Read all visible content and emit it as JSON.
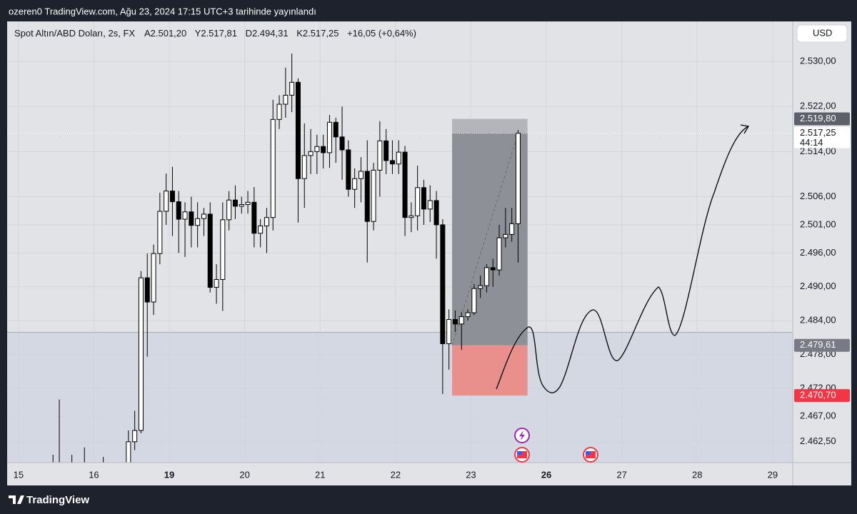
{
  "header": {
    "text": "ozeren0 TradingView.com, Ağu 23, 2024 17:15 UTC+3 tarihinde yayınlandı"
  },
  "footer": {
    "brand": "TradingView"
  },
  "currency": "USD",
  "chart_data": {
    "type": "candlestick",
    "title": "Spot Altın/ABD Doları, 2s, FX",
    "legend_values": [
      "A2.501,20",
      "Y2.517,81",
      "D2.494,31",
      "K2.517,25",
      "+16,05 (+0,64%)"
    ],
    "x": [
      5,
      6,
      7,
      8,
      9,
      10,
      11,
      12,
      13,
      14,
      15,
      16,
      17,
      18,
      19,
      20,
      21,
      22,
      23,
      24,
      25,
      26,
      27,
      28,
      29,
      30,
      31,
      32,
      33,
      34,
      35,
      36,
      37,
      38,
      39,
      40,
      41,
      42,
      43,
      44,
      45,
      46,
      47,
      48,
      49,
      50,
      51,
      52,
      53,
      54,
      55,
      56,
      57,
      58,
      59,
      60,
      61,
      62,
      63,
      64,
      65,
      66,
      67,
      68,
      69,
      70,
      71,
      72,
      73,
      74,
      75,
      76,
      77,
      78,
      79
    ],
    "open": [
      2455,
      2453,
      2456,
      2455,
      2454,
      2455,
      2454,
      2455,
      2456,
      2455,
      2456,
      2457,
      2458,
      2462.5,
      2464.5,
      2491.6,
      2487.3,
      2495.9,
      2503.4,
      2507,
      2505.1,
      2502,
      2503.3,
      2500.9,
      2502.1,
      2502.9,
      2489.9,
      2491.3,
      2501.9,
      2505.4,
      2504.3,
      2504.6,
      2505,
      2499.5,
      2500.8,
      2502.3,
      2519.7,
      2522.4,
      2524,
      2526.3,
      2509.2,
      2513.3,
      2514,
      2514.9,
      2513.8,
      2519.2,
      2516.6,
      2514.3,
      2507.3,
      2509.2,
      2510.5,
      2501.6,
      2510.7,
      2515.9,
      2512.4,
      2511.8,
      2513.9,
      2502.3,
      2502.6,
      2507.6,
      2503.8,
      2505.3,
      2501,
      2479.9,
      2484.2,
      2483.4,
      2484.7,
      2485.4,
      2489.7,
      2490.2,
      2493.4,
      2493,
      2498.7,
      2499.3,
      2501.2
    ],
    "high": [
      2460.2,
      2470,
      2458,
      2460.2,
      2457,
      2461.5,
      2457,
      2458,
      2459.8,
      2457.5,
      2458,
      2458.5,
      2464.5,
      2468,
      2492.8,
      2495.9,
      2497.5,
      2506.7,
      2510.1,
      2511.3,
      2507,
      2505,
      2506,
      2505,
      2504,
      2505,
      2494,
      2505,
      2507,
      2508,
      2506,
      2507,
      2507.7,
      2502,
      2504,
      2523.2,
      2524,
      2528.9,
      2531.4,
      2527,
      2519,
      2518,
      2517,
      2517,
      2520.5,
      2520,
      2522,
      2516,
      2511,
      2513,
      2516,
      2512,
      2519.4,
      2518,
      2516,
      2516,
      2515,
      2505,
      2511.5,
      2509,
      2508,
      2507,
      2502,
      2486,
      2485.8,
      2485.5,
      2486,
      2490.5,
      2492,
      2494,
      2495,
      2501,
      2504,
      2504,
      2517.81
    ],
    "low": [
      2448,
      2450,
      2452,
      2451,
      2450,
      2452,
      2451,
      2452,
      2453,
      2452,
      2453,
      2454,
      2455,
      2461,
      2464,
      2477.6,
      2485,
      2494,
      2501,
      2499,
      2496,
      2495.3,
      2497,
      2497,
      2499,
      2489,
      2487,
      2485.7,
      2500,
      2502,
      2503,
      2503,
      2497,
      2497,
      2496,
      2500,
      2518,
      2520,
      2521,
      2501.4,
      2504,
      2510,
      2510,
      2511,
      2511.1,
      2512,
      2509,
      2506,
      2504,
      2505,
      2494.3,
      2500,
      2506,
      2510,
      2510,
      2510,
      2499,
      2499.7,
      2500,
      2501,
      2501.5,
      2495,
      2471,
      2475.3,
      2482,
      2478.8,
      2484,
      2485,
      2488,
      2489,
      2490,
      2492,
      2497,
      2498,
      2494.31
    ],
    "close": [
      2453,
      2456,
      2455,
      2454,
      2455,
      2454,
      2455,
      2456,
      2455,
      2456,
      2457,
      2458,
      2462.5,
      2464.5,
      2491.6,
      2487.3,
      2495.9,
      2503.4,
      2507,
      2505.1,
      2502,
      2503.3,
      2500.9,
      2502.1,
      2502.9,
      2489.9,
      2491.3,
      2501.9,
      2505.4,
      2504.3,
      2504.6,
      2505,
      2499.5,
      2500.8,
      2502.3,
      2519.7,
      2522.4,
      2524,
      2526.3,
      2509.2,
      2513.3,
      2514,
      2514.9,
      2513.8,
      2519.2,
      2516.6,
      2514.3,
      2507.3,
      2509.2,
      2510.5,
      2501.6,
      2510.7,
      2515.9,
      2512.4,
      2511.8,
      2513.9,
      2502.3,
      2502.6,
      2507.6,
      2503.8,
      2505.3,
      2501,
      2479.9,
      2484.2,
      2483.4,
      2484.7,
      2485.4,
      2489.7,
      2490.2,
      2493.4,
      2493,
      2498.7,
      2499.3,
      2501.2,
      2517.25
    ],
    "up_color": "#ffffff",
    "down_color": "#000000",
    "xlim": [
      -1.8,
      123.2
    ],
    "xticks": [
      {
        "value": 0,
        "label": "15"
      },
      {
        "value": 12,
        "label": "16"
      },
      {
        "value": 24,
        "label": "19"
      },
      {
        "value": 36,
        "label": "20"
      },
      {
        "value": 48,
        "label": "21"
      },
      {
        "value": 60,
        "label": "22"
      },
      {
        "value": 72,
        "label": "23"
      },
      {
        "value": 84,
        "label": "26"
      },
      {
        "value": 96,
        "label": "27"
      },
      {
        "value": 108,
        "label": "28"
      },
      {
        "value": 120,
        "label": "29"
      }
    ],
    "ylim": [
      2458.8,
      2537.1
    ],
    "yticks": [
      {
        "value": 2462.5,
        "label": "2.462,50"
      },
      {
        "value": 2467,
        "label": "2.467,00"
      },
      {
        "value": 2472,
        "label": "2.472,00"
      },
      {
        "value": 2478,
        "label": "2.478,00"
      },
      {
        "value": 2484,
        "label": "2.484,00"
      },
      {
        "value": 2490,
        "label": "2.490,00"
      },
      {
        "value": 2496,
        "label": "2.496,00"
      },
      {
        "value": 2501,
        "label": "2.501,00"
      },
      {
        "value": 2506,
        "label": "2.506,00"
      },
      {
        "value": 2514,
        "label": "2.514,00"
      },
      {
        "value": 2522,
        "label": "2.522,00"
      },
      {
        "value": 2530,
        "label": "2.530,00"
      }
    ],
    "grid": true,
    "zone": {
      "top": 2481.9,
      "color": "#d4d8e3"
    },
    "position": {
      "x": [
        69,
        81
      ],
      "entry": 2479.61,
      "target": 2519.8,
      "stop": 2470.7,
      "target_color": "#b3b5ba",
      "reached_color": "#8d9096",
      "stop_color": "#e98f8c"
    },
    "price_labels": [
      {
        "value": 2519.8,
        "label": "2.519,80",
        "color": "#5d606b"
      },
      {
        "value": 2517.25,
        "label": "2.517,25",
        "countdown": "44:14",
        "color": "#ffffff"
      },
      {
        "value": 2479.61,
        "label": "2.479,61",
        "color": "#787b86"
      },
      {
        "value": 2470.7,
        "label": "2.470,70",
        "color": "#f23645"
      }
    ]
  }
}
